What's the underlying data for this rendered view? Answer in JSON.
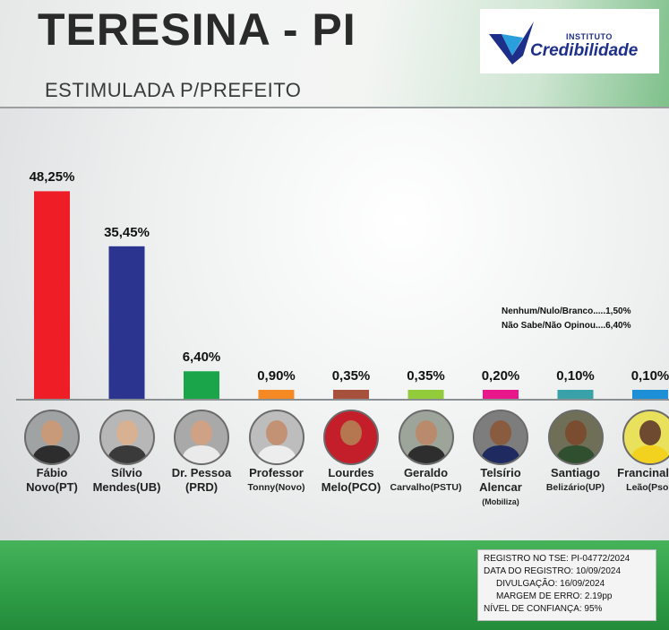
{
  "header": {
    "title": "TERESINA - PI",
    "subtitle": "ESTIMULADA P/PREFEITO"
  },
  "logo": {
    "line1": "INSTITUTO",
    "line2": "Credibilidade"
  },
  "colors": {
    "footer": "#2f9e47",
    "baseline": "#8a8f91"
  },
  "chart_data": {
    "type": "bar",
    "title": "",
    "xlabel": "",
    "ylabel": "",
    "ylim": [
      0,
      50
    ],
    "grid": false,
    "legend": "none",
    "categories": [
      "Fábio Novo(PT)",
      "Sílvio Mendes(UB)",
      "Dr. Pessoa (PRD)",
      "Professor Tonny(Novo)",
      "Lourdes Melo(PCO)",
      "Geraldo Carvalho(PSTU)",
      "Telsírio Alencar (Mobiliza)",
      "Santiago Belizário(UP)",
      "Francinaldo Leão(Psol)"
    ],
    "values": [
      48.25,
      35.45,
      6.4,
      0.9,
      0.35,
      0.35,
      0.2,
      0.1,
      0.1
    ],
    "value_labels": [
      "48,25%",
      "35,45%",
      "6,40%",
      "0,90%",
      "0,35%",
      "0,35%",
      "0,20%",
      "0,10%",
      "0,10%"
    ],
    "bar_colors": [
      "#ee1d26",
      "#2b3590",
      "#1aa54a",
      "#f58a25",
      "#a7513c",
      "#92cc3a",
      "#e8178a",
      "#38a2a8",
      "#1d8fd6"
    ],
    "annotations": [
      "Nenhum/Nulo/Branco.....1,50%",
      "Não Sabe/Não Opinou....6,40%"
    ]
  },
  "candidates": [
    {
      "line1": "Fábio",
      "line2": "Novo(PT)",
      "small": false,
      "line3": ""
    },
    {
      "line1": "Sílvio",
      "line2": "Mendes(UB)",
      "small": false,
      "line3": ""
    },
    {
      "line1": "Dr. Pessoa",
      "line2": "(PRD)",
      "small": false,
      "line3": ""
    },
    {
      "line1": "Professor",
      "line2": "Tonny(Novo)",
      "small": true,
      "line3": ""
    },
    {
      "line1": "Lourdes",
      "line2": "Melo(PCO)",
      "small": false,
      "line3": ""
    },
    {
      "line1": "Geraldo",
      "line2": "Carvalho(PSTU)",
      "small": true,
      "line3": ""
    },
    {
      "line1": "Telsírio",
      "line2": "Alencar",
      "small": false,
      "line3": "(Mobiliza)"
    },
    {
      "line1": "Santiago",
      "line2": "Belizário(UP)",
      "small": true,
      "line3": ""
    },
    {
      "line1": "Francinaldo",
      "line2": "Leão(Psol)",
      "small": true,
      "line3": ""
    }
  ],
  "registry": [
    "REGISTRO NO TSE: PI-04772/2024",
    "DATA DO REGISTRO: 10/09/2024",
    "DIVULGAÇÃO: 16/09/2024",
    "MARGEM DE ERRO: 2.19pp",
    "NÍVEL DE CONFIANÇA: 95%"
  ]
}
